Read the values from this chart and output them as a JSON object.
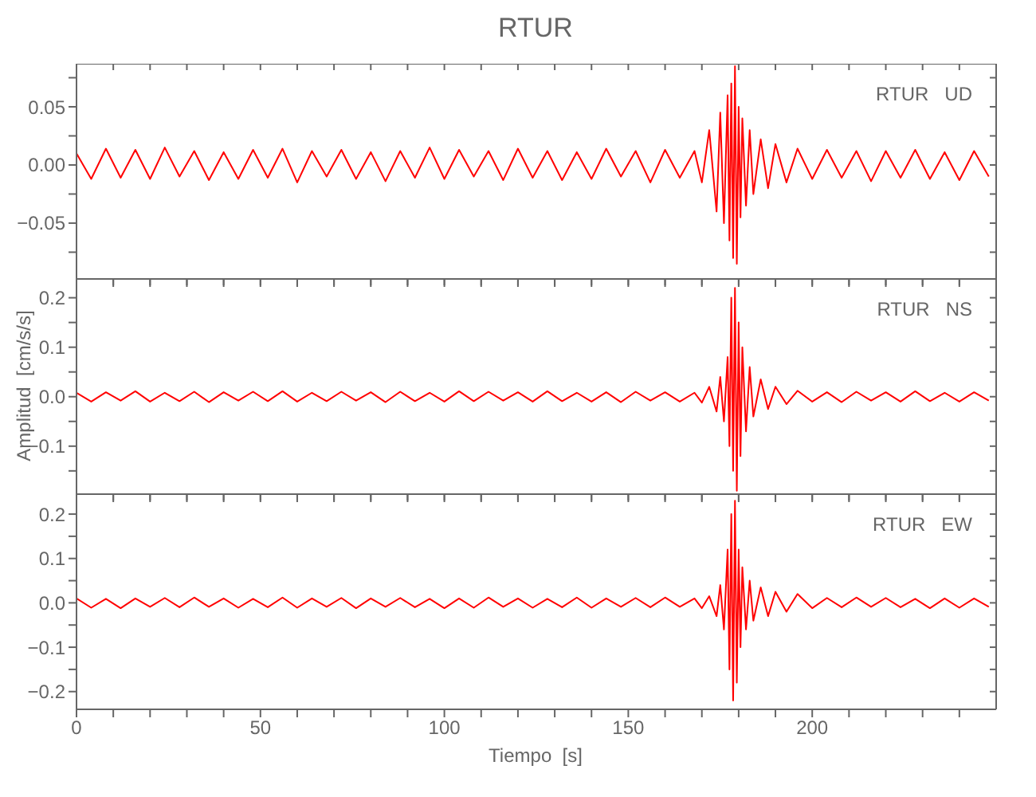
{
  "chart_data": [
    {
      "type": "line",
      "title": "RTUR",
      "annotations": [
        "RTUR   UD"
      ],
      "tick_labels": "y",
      "x": [
        0,
        4,
        8,
        12,
        16,
        20,
        24,
        28,
        32,
        36,
        40,
        44,
        48,
        52,
        56,
        60,
        64,
        68,
        72,
        76,
        80,
        84,
        88,
        92,
        96,
        100,
        104,
        108,
        112,
        116,
        120,
        124,
        128,
        132,
        136,
        140,
        144,
        148,
        152,
        156,
        160,
        164,
        168,
        170,
        172,
        174,
        175,
        176,
        177,
        177.5,
        178,
        178.5,
        179,
        179.5,
        180,
        180.5,
        181,
        182,
        183,
        184,
        186,
        188,
        190,
        193,
        196,
        200,
        204,
        208,
        212,
        216,
        220,
        224,
        228,
        232,
        236,
        240,
        244,
        248
      ],
      "series": [
        {
          "color": "#ff0000",
          "values": [
            0.01,
            -0.012,
            0.014,
            -0.011,
            0.013,
            -0.012,
            0.015,
            -0.01,
            0.012,
            -0.013,
            0.011,
            -0.012,
            0.013,
            -0.011,
            0.014,
            -0.015,
            0.012,
            -0.01,
            0.013,
            -0.012,
            0.011,
            -0.014,
            0.012,
            -0.011,
            0.015,
            -0.012,
            0.013,
            -0.01,
            0.012,
            -0.013,
            0.014,
            -0.011,
            0.012,
            -0.013,
            0.011,
            -0.012,
            0.014,
            -0.01,
            0.012,
            -0.015,
            0.013,
            -0.011,
            0.012,
            -0.015,
            0.03,
            -0.04,
            0.045,
            -0.05,
            0.06,
            -0.065,
            0.07,
            -0.08,
            0.085,
            -0.085,
            0.05,
            -0.045,
            0.04,
            -0.035,
            0.03,
            -0.025,
            0.022,
            -0.02,
            0.018,
            -0.015,
            0.014,
            -0.012,
            0.013,
            -0.011,
            0.012,
            -0.014,
            0.012,
            -0.011,
            0.013,
            -0.012,
            0.011,
            -0.013,
            0.012,
            -0.01
          ]
        }
      ],
      "xlim": [
        0,
        250
      ],
      "xticks": [
        0,
        {
          "value": 10,
          "label": null
        },
        {
          "value": 20,
          "label": null
        },
        {
          "value": 30,
          "label": null
        },
        {
          "value": 40,
          "label": null
        },
        50,
        {
          "value": 60,
          "label": null
        },
        {
          "value": 70,
          "label": null
        },
        {
          "value": 80,
          "label": null
        },
        {
          "value": 90,
          "label": null
        },
        100,
        {
          "value": 110,
          "label": null
        },
        {
          "value": 120,
          "label": null
        },
        {
          "value": 130,
          "label": null
        },
        {
          "value": 140,
          "label": null
        },
        150,
        {
          "value": 160,
          "label": null
        },
        {
          "value": 170,
          "label": null
        },
        {
          "value": 180,
          "label": null
        },
        {
          "value": 190,
          "label": null
        },
        200,
        {
          "value": 210,
          "label": null
        },
        {
          "value": 220,
          "label": null
        },
        {
          "value": 230,
          "label": null
        },
        {
          "value": 240,
          "label": null
        }
      ],
      "ylim": [
        -0.098,
        0.087
      ],
      "yticks": [
        {
          "value": -0.075,
          "label": null
        },
        {
          "value": -0.05,
          "label": "−0.05"
        },
        {
          "value": -0.025,
          "label": null
        },
        {
          "value": 0,
          "label": "0.00"
        },
        {
          "value": 0.025,
          "label": null
        },
        0.05,
        {
          "value": 0.075,
          "label": null
        }
      ]
    },
    {
      "type": "line",
      "ylabel": "Amplitud  [cm/s/s]",
      "annotations": [
        "RTUR   NS"
      ],
      "tick_labels": "y",
      "x": [
        0,
        4,
        8,
        12,
        16,
        20,
        24,
        28,
        32,
        36,
        40,
        44,
        48,
        52,
        56,
        60,
        64,
        68,
        72,
        76,
        80,
        84,
        88,
        92,
        96,
        100,
        104,
        108,
        112,
        116,
        120,
        124,
        128,
        132,
        136,
        140,
        144,
        148,
        152,
        156,
        160,
        164,
        168,
        170,
        172,
        174,
        175,
        176,
        177,
        177.5,
        178,
        178.5,
        179,
        179.5,
        180,
        180.5,
        181,
        182,
        183,
        184,
        186,
        188,
        190,
        193,
        196,
        200,
        204,
        208,
        212,
        216,
        220,
        224,
        228,
        232,
        236,
        240,
        244,
        248
      ],
      "series": [
        {
          "color": "#ff0000",
          "values": [
            0.008,
            -0.01,
            0.009,
            -0.008,
            0.011,
            -0.01,
            0.008,
            -0.009,
            0.01,
            -0.011,
            0.009,
            -0.008,
            0.01,
            -0.009,
            0.011,
            -0.01,
            0.008,
            -0.009,
            0.01,
            -0.008,
            0.009,
            -0.011,
            0.01,
            -0.009,
            0.008,
            -0.01,
            0.011,
            -0.009,
            0.01,
            -0.008,
            0.009,
            -0.01,
            0.011,
            -0.009,
            0.008,
            -0.01,
            0.009,
            -0.011,
            0.01,
            -0.008,
            0.009,
            -0.01,
            0.008,
            -0.012,
            0.02,
            -0.03,
            0.04,
            -0.05,
            0.08,
            -0.1,
            0.2,
            -0.15,
            0.22,
            -0.19,
            0.15,
            -0.12,
            0.1,
            -0.07,
            0.06,
            -0.04,
            0.035,
            -0.025,
            0.02,
            -0.015,
            0.012,
            -0.01,
            0.009,
            -0.011,
            0.01,
            -0.008,
            0.009,
            -0.01,
            0.011,
            -0.009,
            0.008,
            -0.01,
            0.009,
            -0.008
          ]
        }
      ],
      "xlim": [
        0,
        250
      ],
      "xticks": [
        0,
        {
          "value": 10,
          "label": null
        },
        {
          "value": 20,
          "label": null
        },
        {
          "value": 30,
          "label": null
        },
        {
          "value": 40,
          "label": null
        },
        50,
        {
          "value": 60,
          "label": null
        },
        {
          "value": 70,
          "label": null
        },
        {
          "value": 80,
          "label": null
        },
        {
          "value": 90,
          "label": null
        },
        100,
        {
          "value": 110,
          "label": null
        },
        {
          "value": 120,
          "label": null
        },
        {
          "value": 130,
          "label": null
        },
        {
          "value": 140,
          "label": null
        },
        150,
        {
          "value": 160,
          "label": null
        },
        {
          "value": 170,
          "label": null
        },
        {
          "value": 180,
          "label": null
        },
        {
          "value": 190,
          "label": null
        },
        200,
        {
          "value": 210,
          "label": null
        },
        {
          "value": 220,
          "label": null
        },
        {
          "value": 230,
          "label": null
        },
        {
          "value": 240,
          "label": null
        }
      ],
      "ylim": [
        -0.197,
        0.238
      ],
      "yticks": [
        {
          "value": -0.15,
          "label": null
        },
        {
          "value": -0.1,
          "label": "−0.1"
        },
        {
          "value": -0.05,
          "label": null
        },
        {
          "value": 0,
          "label": "0.0"
        },
        {
          "value": 0.05,
          "label": null
        },
        0.1,
        {
          "value": 0.15,
          "label": null
        },
        0.2
      ]
    },
    {
      "type": "line",
      "xlabel": "Tiempo  [s]",
      "annotations": [
        "RTUR   EW"
      ],
      "x": [
        0,
        4,
        8,
        12,
        16,
        20,
        24,
        28,
        32,
        36,
        40,
        44,
        48,
        52,
        56,
        60,
        64,
        68,
        72,
        76,
        80,
        84,
        88,
        92,
        96,
        100,
        104,
        108,
        112,
        116,
        120,
        124,
        128,
        132,
        136,
        140,
        144,
        148,
        152,
        156,
        160,
        164,
        168,
        170,
        172,
        174,
        175,
        176,
        177,
        177.5,
        178,
        178.5,
        179,
        179.5,
        180,
        180.5,
        181,
        182,
        183,
        184,
        186,
        188,
        190,
        193,
        196,
        200,
        204,
        208,
        212,
        216,
        220,
        224,
        228,
        232,
        236,
        240,
        244,
        248
      ],
      "series": [
        {
          "color": "#ff0000",
          "values": [
            0.01,
            -0.011,
            0.009,
            -0.012,
            0.01,
            -0.009,
            0.011,
            -0.01,
            0.012,
            -0.009,
            0.01,
            -0.011,
            0.009,
            -0.01,
            0.012,
            -0.011,
            0.01,
            -0.009,
            0.011,
            -0.012,
            0.01,
            -0.009,
            0.011,
            -0.01,
            0.009,
            -0.012,
            0.01,
            -0.011,
            0.012,
            -0.009,
            0.01,
            -0.011,
            0.009,
            -0.01,
            0.012,
            -0.011,
            0.01,
            -0.009,
            0.011,
            -0.01,
            0.012,
            -0.009,
            0.01,
            -0.012,
            0.015,
            -0.03,
            0.04,
            -0.06,
            0.12,
            -0.15,
            0.2,
            -0.22,
            0.23,
            -0.18,
            0.12,
            -0.1,
            0.08,
            -0.06,
            0.05,
            -0.04,
            0.035,
            -0.03,
            0.025,
            -0.02,
            0.02,
            -0.012,
            0.011,
            -0.01,
            0.012,
            -0.009,
            0.011,
            -0.01,
            0.009,
            -0.012,
            0.01,
            -0.011,
            0.01,
            -0.009
          ]
        }
      ],
      "xlim": [
        0,
        250
      ],
      "xticks": [
        0,
        {
          "value": 10,
          "label": null
        },
        {
          "value": 20,
          "label": null
        },
        {
          "value": 30,
          "label": null
        },
        {
          "value": 40,
          "label": null
        },
        50,
        {
          "value": 60,
          "label": null
        },
        {
          "value": 70,
          "label": null
        },
        {
          "value": 80,
          "label": null
        },
        {
          "value": 90,
          "label": null
        },
        100,
        {
          "value": 110,
          "label": null
        },
        {
          "value": 120,
          "label": null
        },
        {
          "value": 130,
          "label": null
        },
        {
          "value": 140,
          "label": null
        },
        150,
        {
          "value": 160,
          "label": null
        },
        {
          "value": 170,
          "label": null
        },
        {
          "value": 180,
          "label": null
        },
        {
          "value": 190,
          "label": null
        },
        200,
        {
          "value": 210,
          "label": null
        },
        {
          "value": 220,
          "label": null
        },
        {
          "value": 230,
          "label": null
        },
        {
          "value": 240,
          "label": null
        }
      ],
      "ylim": [
        -0.24,
        0.245
      ],
      "yticks": [
        {
          "value": -0.2,
          "label": "−0.2"
        },
        {
          "value": -0.15,
          "label": null
        },
        {
          "value": -0.1,
          "label": "−0.1"
        },
        {
          "value": -0.05,
          "label": null
        },
        {
          "value": 0,
          "label": "0.0"
        },
        {
          "value": 0.05,
          "label": null
        },
        0.1,
        {
          "value": 0.15,
          "label": null
        },
        0.2
      ]
    }
  ]
}
